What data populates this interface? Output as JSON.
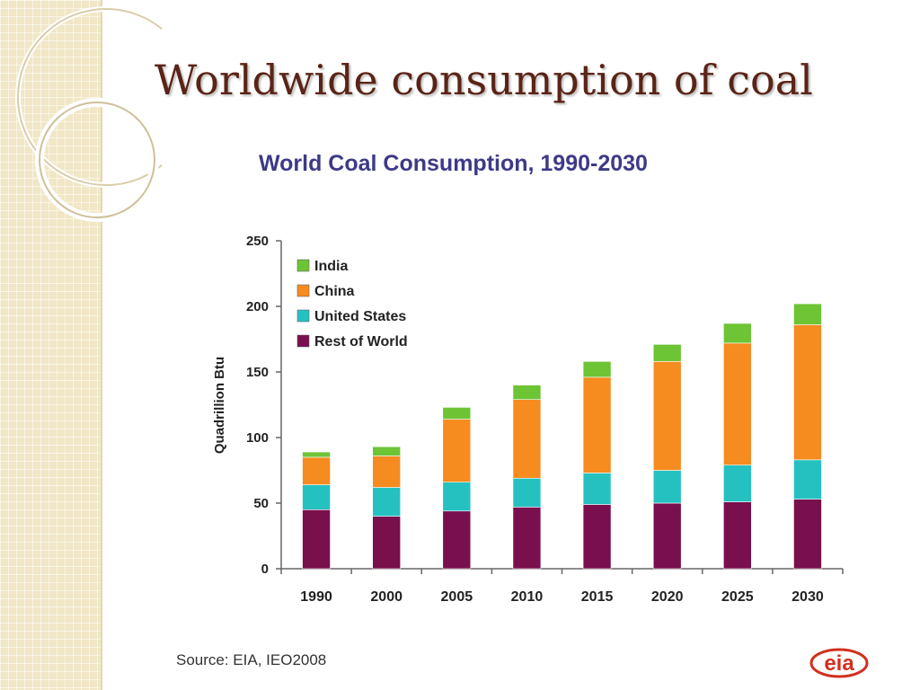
{
  "slide": {
    "title": "Worldwide consumption of coal",
    "source": "Source:  EIA, IEO2008",
    "logo_text": "eia"
  },
  "colors": {
    "India": "#6dc435",
    "China": "#f68b1f",
    "United States": "#25c1c1",
    "Rest of World": "#7a0f4e",
    "title_text": "#5a2416",
    "chart_title": "#3d3a88",
    "logo": "#d32f1e"
  },
  "chart_data": {
    "type": "bar",
    "stacked": true,
    "title": "World Coal Consumption, 1990-2030",
    "xlabel": "",
    "ylabel": "Quadrillion Btu",
    "ylim": [
      0,
      250
    ],
    "yticks": [
      0,
      50,
      100,
      150,
      200,
      250
    ],
    "grid": false,
    "legend_position": "top-left",
    "categories": [
      "1990",
      "2000",
      "2005",
      "2010",
      "2015",
      "2020",
      "2025",
      "2030"
    ],
    "series": [
      {
        "name": "Rest of World",
        "values": [
          45,
          40,
          44,
          47,
          49,
          50,
          51,
          53
        ]
      },
      {
        "name": "United States",
        "values": [
          19,
          22,
          22,
          22,
          24,
          25,
          28,
          30
        ]
      },
      {
        "name": "China",
        "values": [
          21,
          24,
          48,
          60,
          73,
          83,
          93,
          103
        ]
      },
      {
        "name": "India",
        "values": [
          4,
          7,
          9,
          11,
          12,
          13,
          15,
          16
        ]
      }
    ],
    "legend_order": [
      "India",
      "China",
      "United States",
      "Rest of World"
    ]
  }
}
